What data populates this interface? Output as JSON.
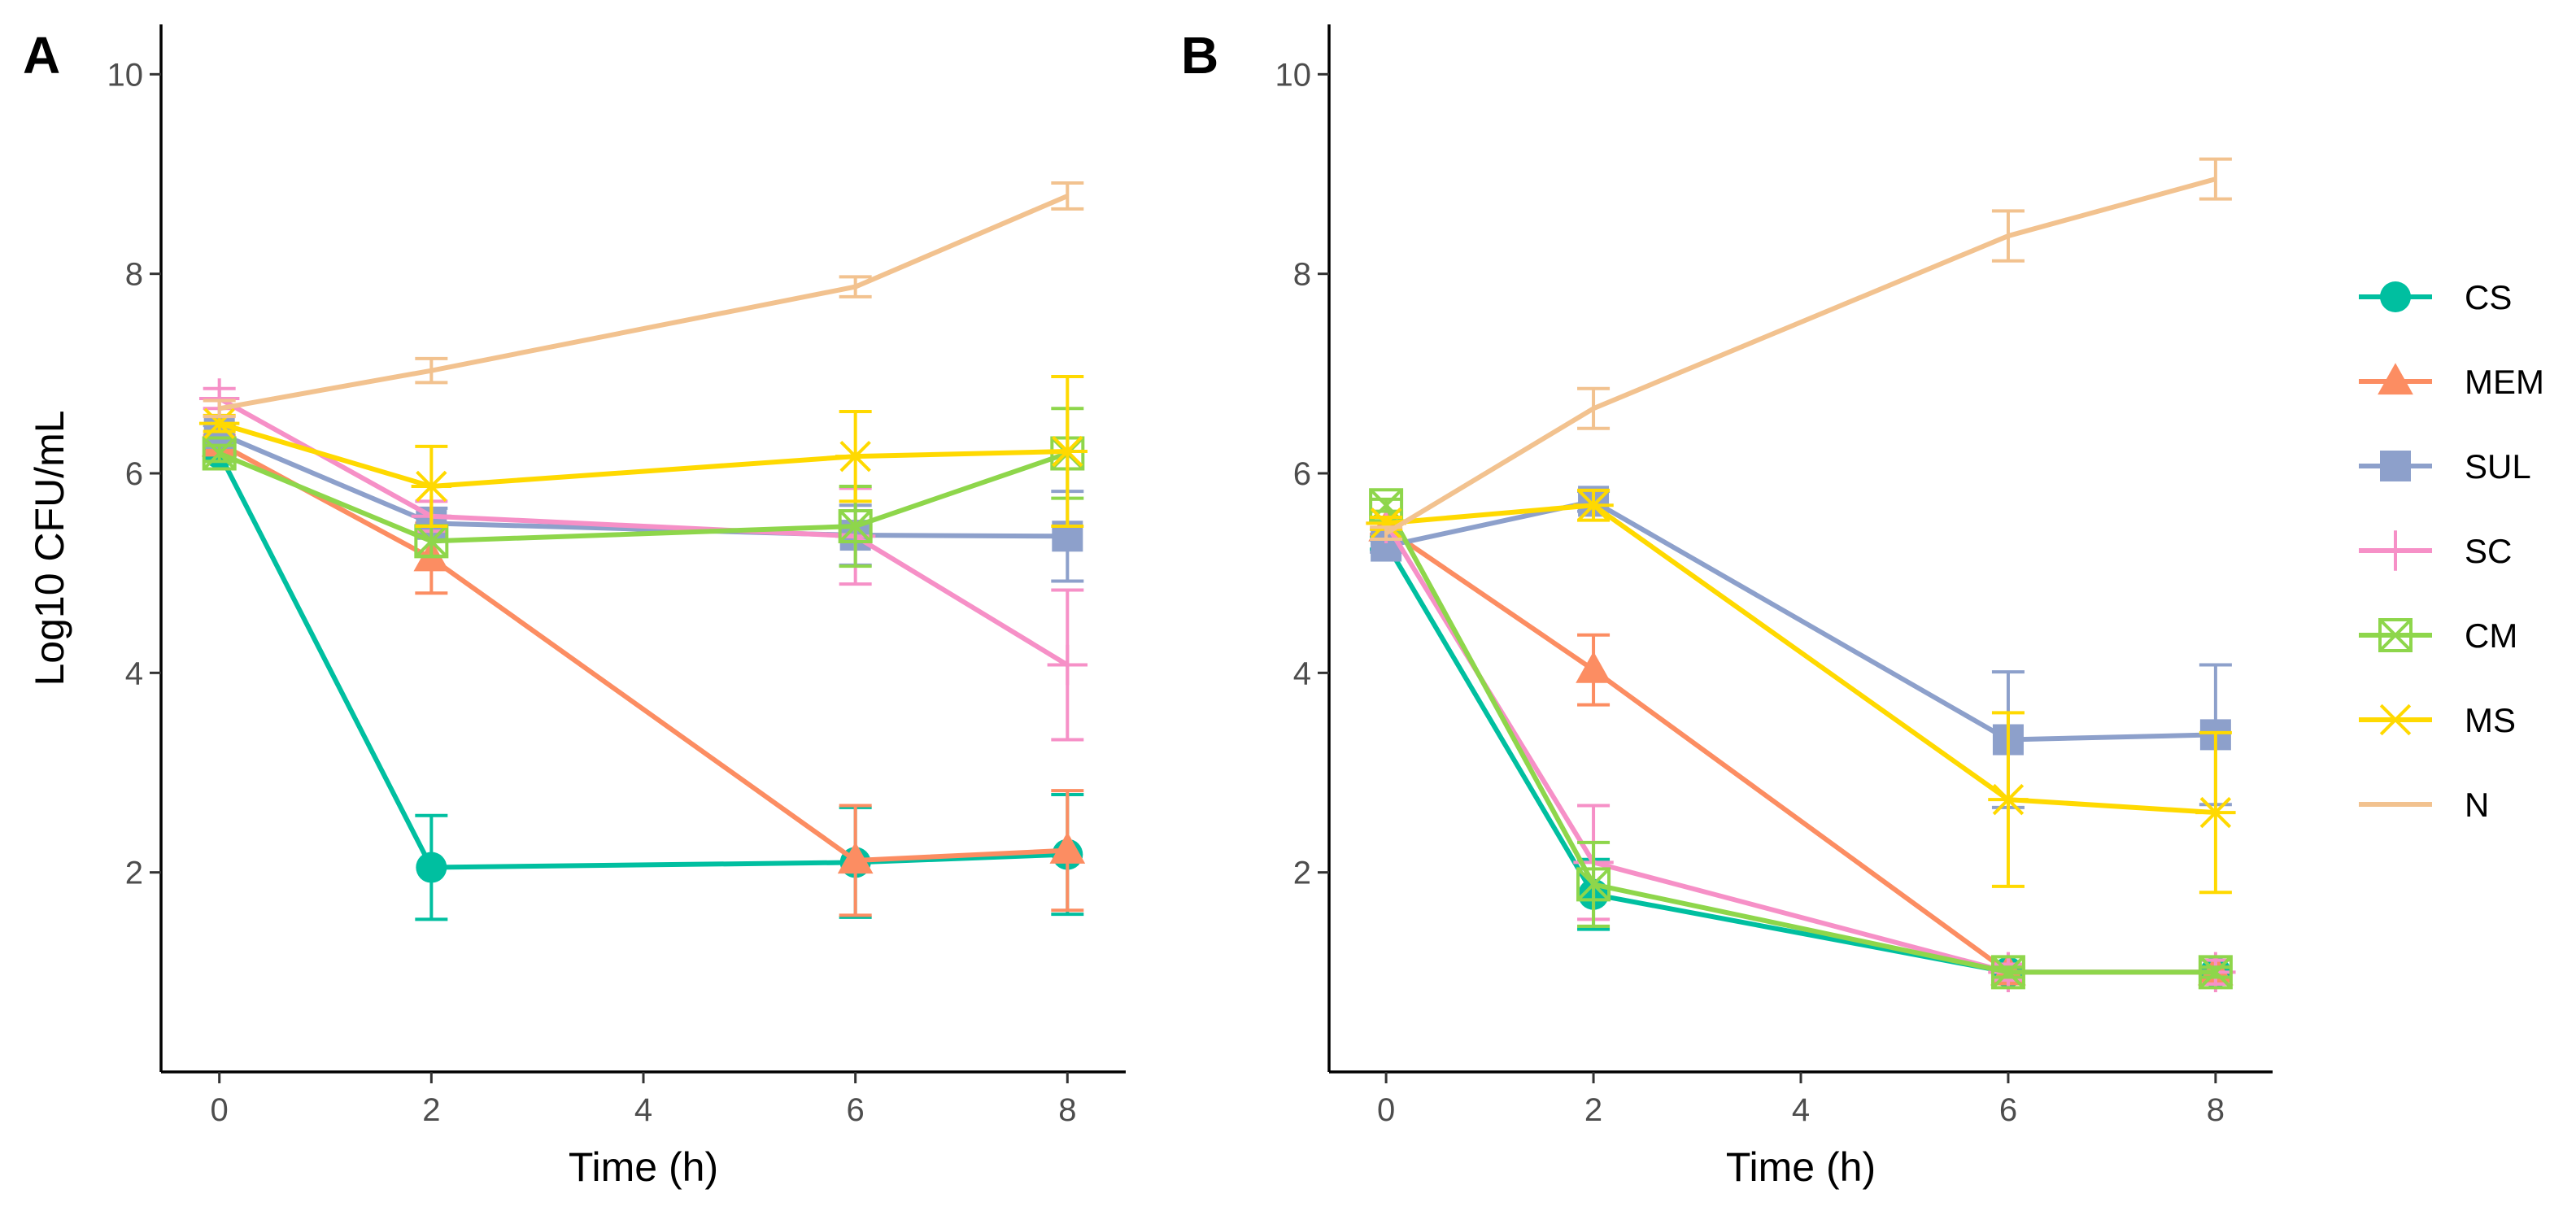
{
  "chart_data": [
    {
      "type": "line",
      "panel_label": "A",
      "xlabel": "Time (h)",
      "ylabel": "Log10 CFU/mL",
      "x": [
        0,
        2,
        6,
        8
      ],
      "xticks": [
        0,
        2,
        4,
        6,
        8
      ],
      "yticks": [
        2,
        4,
        6,
        8,
        10
      ],
      "xlim": [
        -0.55,
        8.55
      ],
      "ylim": [
        0.0,
        10.5
      ],
      "grid": false,
      "series": [
        {
          "name": "CS",
          "values": [
            6.2,
            2.05,
            2.1,
            2.18
          ],
          "errors": [
            0.08,
            0.52,
            0.55,
            0.6
          ]
        },
        {
          "name": "MEM",
          "values": [
            6.3,
            5.15,
            2.12,
            2.22
          ],
          "errors": [
            0.08,
            0.35,
            0.55,
            0.6
          ]
        },
        {
          "name": "SUL",
          "values": [
            6.4,
            5.5,
            5.38,
            5.37
          ],
          "errors": [
            0.08,
            0.15,
            0.3,
            0.45
          ]
        },
        {
          "name": "SC",
          "values": [
            6.75,
            5.57,
            5.37,
            4.08
          ],
          "errors": [
            0.1,
            0.15,
            0.48,
            0.75
          ]
        },
        {
          "name": "CM",
          "values": [
            6.2,
            5.32,
            5.47,
            6.2
          ],
          "errors": [
            0.08,
            0.15,
            0.4,
            0.45
          ]
        },
        {
          "name": "MS",
          "values": [
            6.5,
            5.87,
            6.17,
            6.22
          ],
          "errors": [
            0.08,
            0.4,
            0.45,
            0.75
          ]
        },
        {
          "name": "N",
          "values": [
            6.65,
            7.03,
            7.87,
            8.78
          ],
          "errors": [
            0.08,
            0.12,
            0.1,
            0.13
          ]
        }
      ]
    },
    {
      "type": "line",
      "panel_label": "B",
      "xlabel": "Time (h)",
      "ylabel": "",
      "x": [
        0,
        2,
        6,
        8
      ],
      "xticks": [
        0,
        2,
        4,
        6,
        8
      ],
      "yticks": [
        2,
        4,
        6,
        8,
        10
      ],
      "xlim": [
        -0.55,
        8.55
      ],
      "ylim": [
        0.0,
        10.5
      ],
      "grid": false,
      "series": [
        {
          "name": "CS",
          "values": [
            5.3,
            1.78,
            1.0,
            1.0
          ],
          "errors": [
            0.06,
            0.35,
            0.05,
            0.05
          ]
        },
        {
          "name": "MEM",
          "values": [
            5.45,
            4.03,
            1.0,
            1.0
          ],
          "errors": [
            0.06,
            0.35,
            0.05,
            0.05
          ]
        },
        {
          "name": "SUL",
          "values": [
            5.27,
            5.72,
            3.33,
            3.38
          ],
          "errors": [
            0.06,
            0.1,
            0.68,
            0.7
          ]
        },
        {
          "name": "SC",
          "values": [
            5.5,
            2.1,
            1.0,
            1.0
          ],
          "errors": [
            0.06,
            0.57,
            0.08,
            0.12
          ]
        },
        {
          "name": "CM",
          "values": [
            5.68,
            1.88,
            1.0,
            1.0
          ],
          "errors": [
            0.06,
            0.42,
            0.05,
            0.05
          ]
        },
        {
          "name": "MS",
          "values": [
            5.5,
            5.68,
            2.73,
            2.6
          ],
          "errors": [
            0.06,
            0.15,
            0.87,
            0.8
          ]
        },
        {
          "name": "N",
          "values": [
            5.4,
            6.65,
            8.38,
            8.95
          ],
          "errors": [
            0.06,
            0.2,
            0.25,
            0.2
          ]
        }
      ]
    }
  ],
  "legend": {
    "position": "right",
    "items": [
      {
        "name": "CS",
        "color": "#00BFA0",
        "marker": "circle"
      },
      {
        "name": "MEM",
        "color": "#FC8D62",
        "marker": "triangle"
      },
      {
        "name": "SUL",
        "color": "#8DA0CB",
        "marker": "square"
      },
      {
        "name": "SC",
        "color": "#F690C7",
        "marker": "plus"
      },
      {
        "name": "CM",
        "color": "#8ED64B",
        "marker": "boxcross"
      },
      {
        "name": "MS",
        "color": "#FFD900",
        "marker": "asterisk"
      },
      {
        "name": "N",
        "color": "#F2C28F",
        "marker": "none"
      }
    ]
  }
}
